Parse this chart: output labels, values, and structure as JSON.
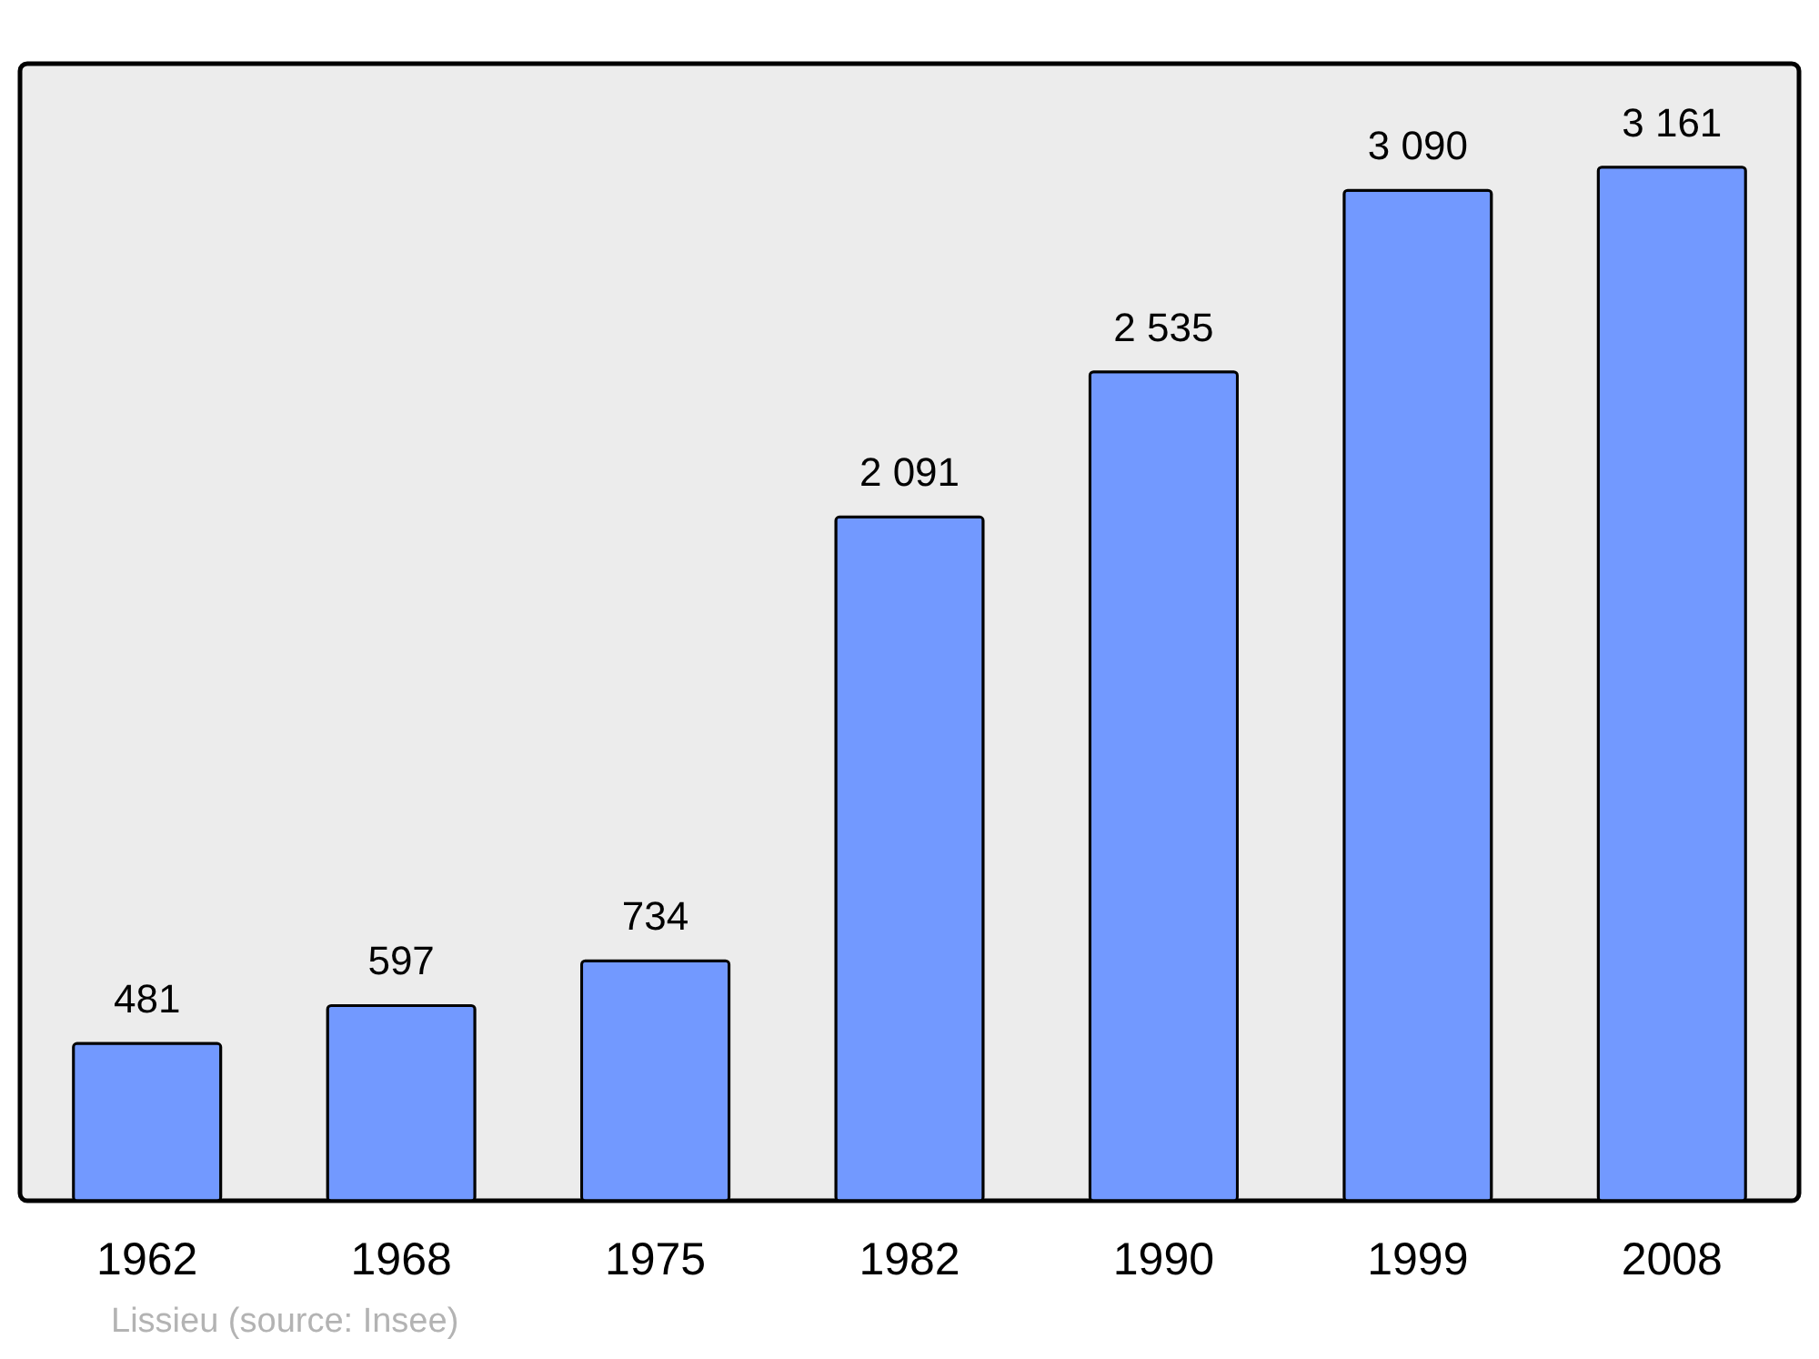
{
  "chart_data": {
    "type": "bar",
    "categories": [
      "1962",
      "1968",
      "1975",
      "1982",
      "1990",
      "1999",
      "2008"
    ],
    "values": [
      481,
      597,
      734,
      2091,
      2535,
      3090,
      3161
    ],
    "value_labels": [
      "481",
      "597",
      "734",
      "2 091",
      "2 535",
      "3 090",
      "3 161"
    ],
    "color": "#7299ff",
    "annotations": [
      "Lissieu    (source: Insee)"
    ]
  }
}
